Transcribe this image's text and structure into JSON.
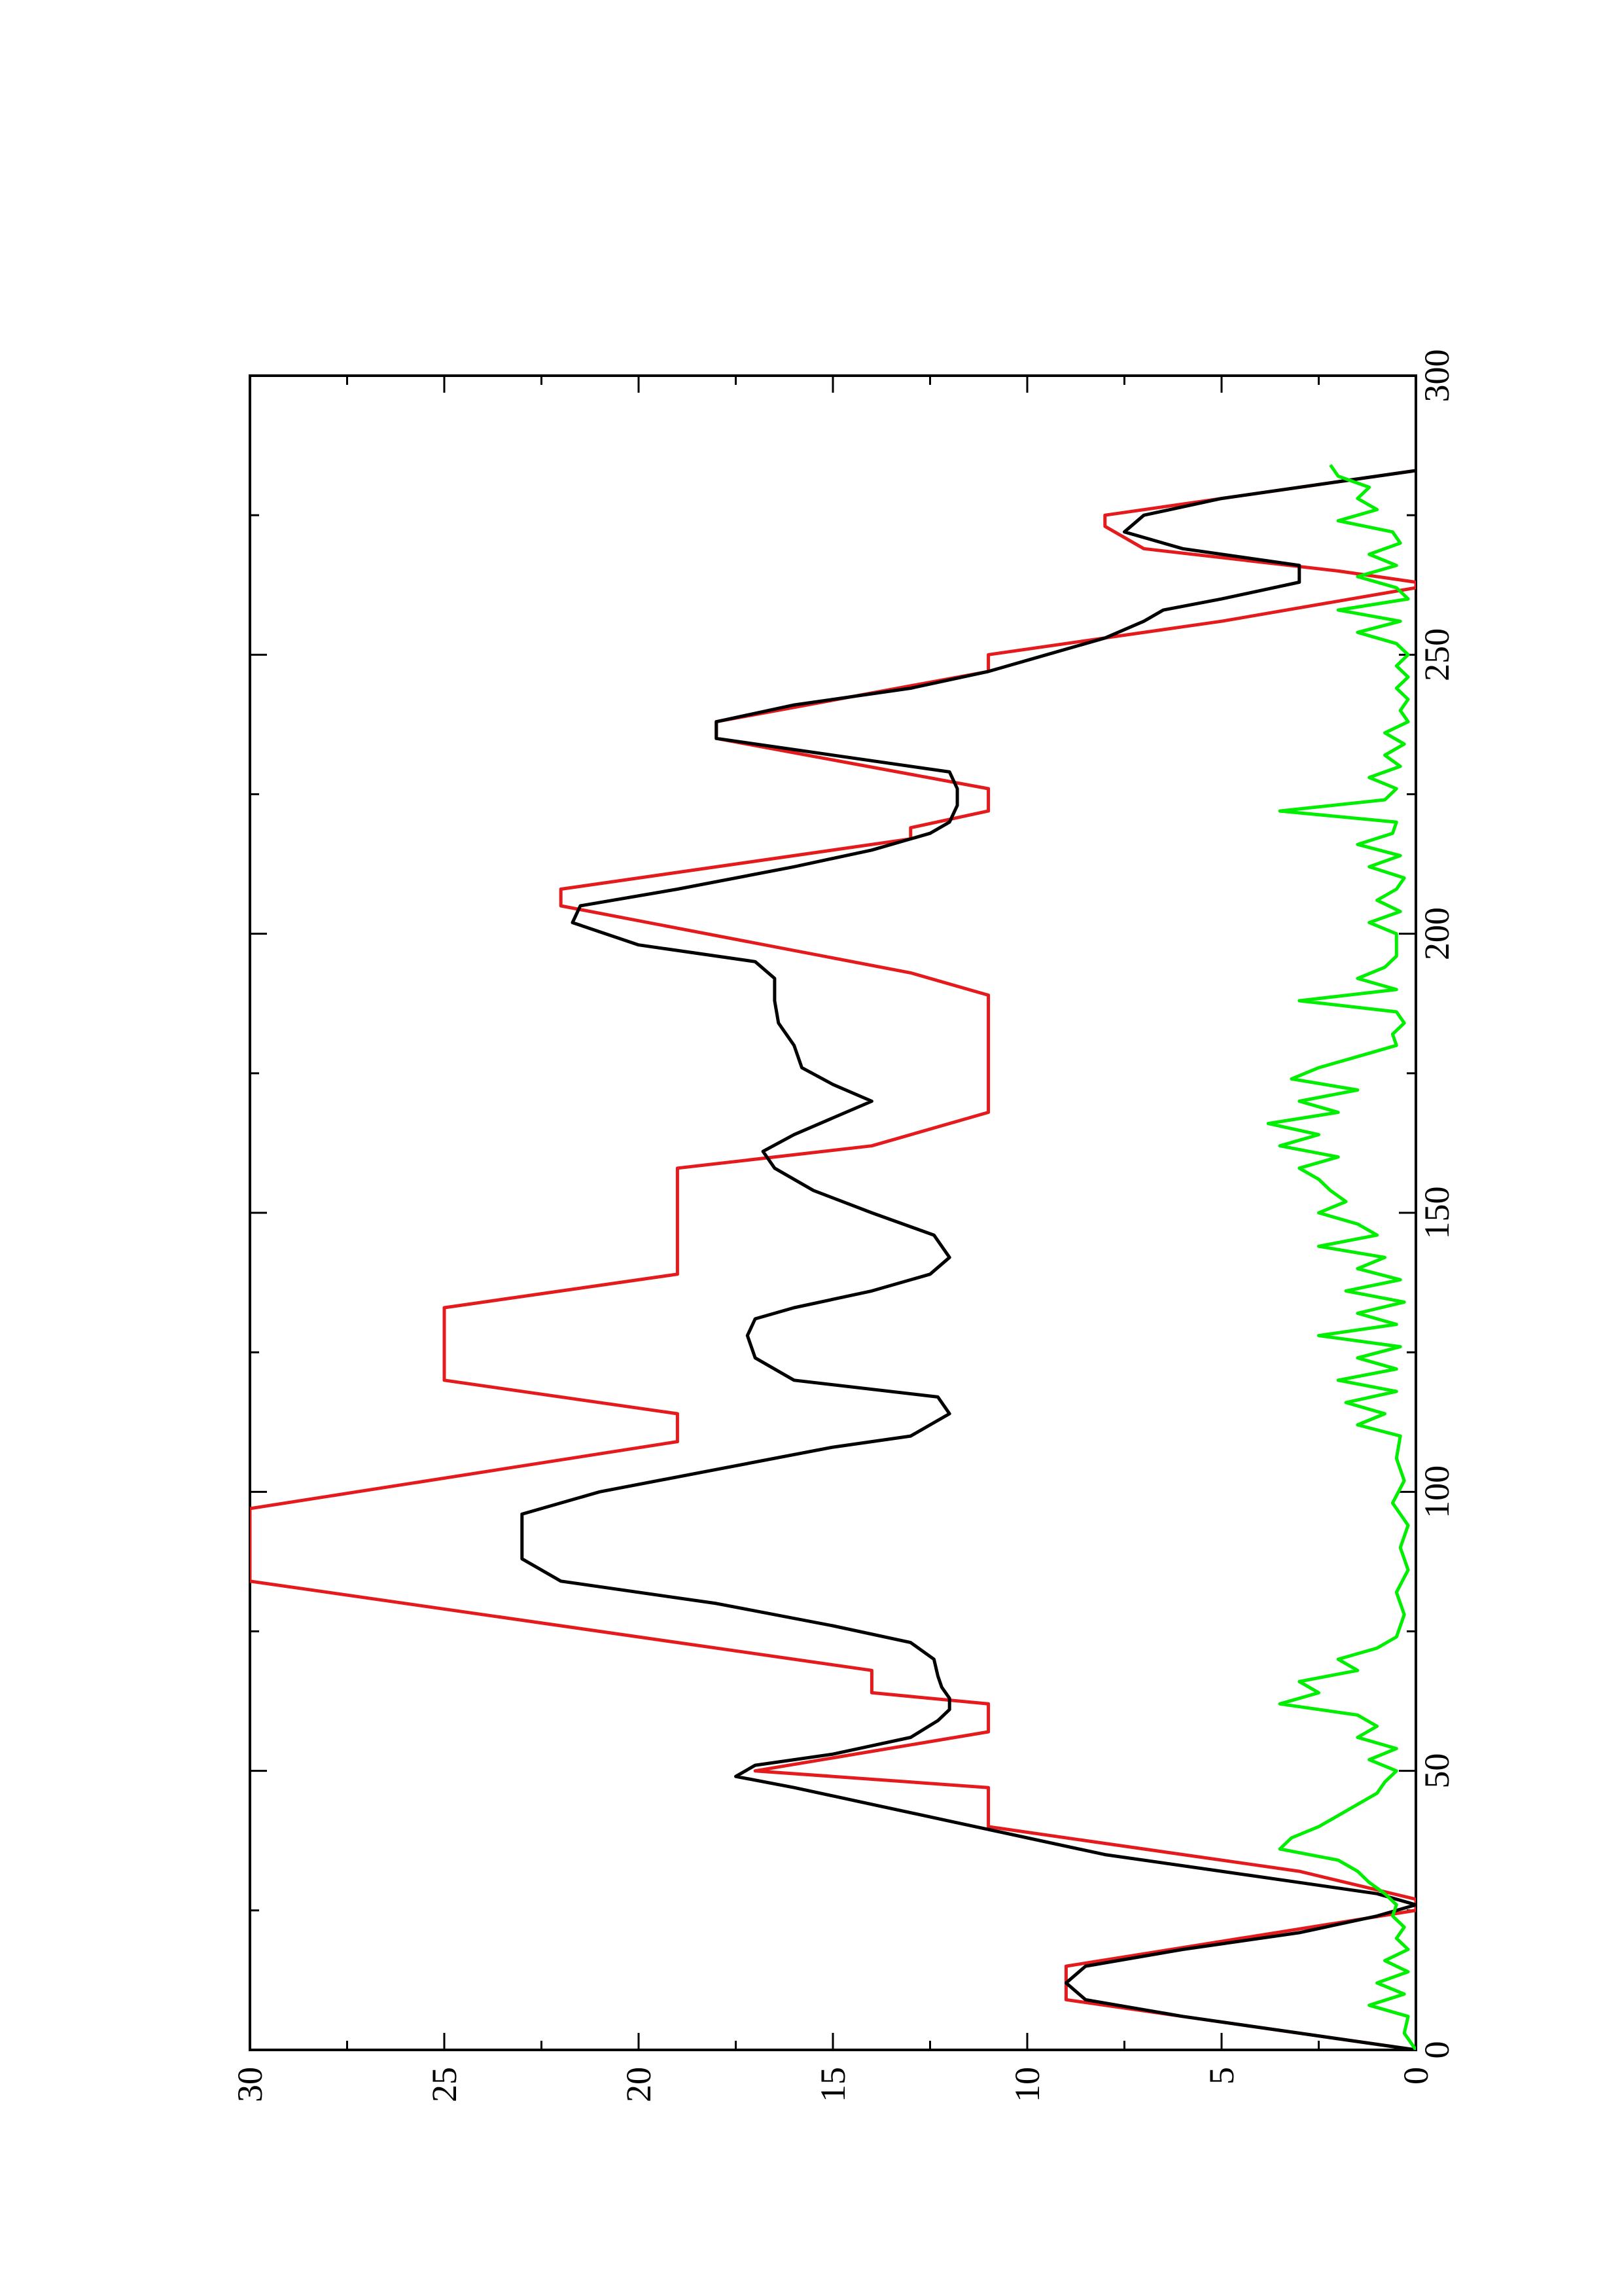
{
  "chart_data": {
    "type": "line",
    "title": "",
    "xlabel": "",
    "ylabel": "",
    "xlim": [
      0,
      300
    ],
    "ylim": [
      0,
      30
    ],
    "orientation": "rotated-90-ccw",
    "grid": false,
    "legend": "none",
    "x_ticks": [
      {
        "value": 0,
        "label": "0"
      },
      {
        "value": 50,
        "label": "50"
      },
      {
        "value": 100,
        "label": "100"
      },
      {
        "value": 150,
        "label": "150"
      },
      {
        "value": 200,
        "label": "200"
      },
      {
        "value": 250,
        "label": "250"
      },
      {
        "value": 300,
        "label": "300"
      }
    ],
    "y_ticks": [
      {
        "value": 0,
        "label": "0"
      },
      {
        "value": 5,
        "label": "5"
      },
      {
        "value": 10,
        "label": "10"
      },
      {
        "value": 15,
        "label": "15"
      },
      {
        "value": 20,
        "label": "20"
      },
      {
        "value": 25,
        "label": "25"
      },
      {
        "value": 30,
        "label": "30"
      }
    ],
    "series": [
      {
        "color": "#e41a1c",
        "x": [
          0,
          9,
          15,
          25,
          27,
          32,
          37,
          40,
          47,
          50,
          57,
          62,
          64,
          68,
          84,
          97,
          109,
          114,
          120,
          133,
          139,
          158,
          162,
          168,
          189,
          193,
          205,
          208,
          217,
          219,
          222,
          226,
          235,
          238,
          247,
          250,
          255,
          256,
          262,
          263,
          265,
          269,
          273,
          275,
          283
        ],
        "y": [
          0,
          9,
          9,
          0,
          0,
          3,
          8,
          11,
          11,
          17,
          11,
          11,
          14,
          14,
          30,
          30,
          19,
          19,
          25,
          25,
          19,
          19,
          14,
          11,
          11,
          13,
          22,
          22,
          13,
          13,
          11,
          11,
          18,
          18,
          11,
          11,
          6,
          5,
          0,
          0,
          2,
          7,
          8,
          8,
          0
        ]
      },
      {
        "color": "#000000",
        "x": [
          0,
          3,
          6,
          9,
          12,
          15,
          18,
          21,
          24,
          26,
          28,
          30,
          32,
          35,
          38,
          41,
          44,
          47,
          49,
          51,
          53,
          56,
          59,
          61,
          63,
          65,
          67,
          70,
          73,
          76,
          80,
          84,
          88,
          92,
          96,
          100,
          104,
          108,
          110,
          112,
          114,
          117,
          120,
          124,
          128,
          131,
          133,
          136,
          139,
          142,
          146,
          150,
          154,
          158,
          161,
          164,
          167,
          170,
          173,
          176,
          180,
          184,
          188,
          192,
          195,
          198,
          202,
          205,
          208,
          212,
          215,
          218,
          220,
          223,
          226,
          229,
          232,
          235,
          238,
          241,
          244,
          247,
          250,
          253,
          256,
          258,
          260,
          263,
          266,
          269,
          272,
          275,
          278,
          281,
          283
        ],
        "y": [
          0,
          3,
          6,
          8.5,
          9,
          8.5,
          6,
          3,
          1,
          0,
          1,
          3,
          5,
          8,
          10,
          12,
          14,
          16,
          17.5,
          17,
          15,
          13,
          12.3,
          12,
          12,
          12.2,
          12.3,
          12.4,
          13,
          15,
          18,
          22,
          23,
          23,
          23,
          21,
          18,
          15,
          13,
          12.5,
          12,
          12.3,
          16,
          17,
          17.2,
          17,
          16,
          14,
          12.5,
          12,
          12.4,
          14,
          15.5,
          16.5,
          16.8,
          16,
          15,
          14,
          15,
          15.8,
          16,
          16.4,
          16.5,
          16.5,
          17,
          20,
          21.7,
          21.5,
          19,
          16,
          14,
          12.5,
          12,
          11.8,
          11.8,
          12,
          15,
          18,
          18,
          16,
          13,
          11,
          9.5,
          8,
          7,
          6.5,
          5,
          3,
          3,
          6,
          7.5,
          7,
          5,
          2,
          0
        ]
      },
      {
        "color": "#00ee00",
        "x": [
          0,
          3,
          6,
          8,
          10,
          12,
          14,
          16,
          18,
          20,
          22,
          24,
          26,
          28,
          30,
          32,
          34,
          36,
          38,
          40,
          42,
          44,
          46,
          48,
          50,
          52,
          54,
          56,
          58,
          60,
          62,
          64,
          66,
          68,
          70,
          72,
          74,
          78,
          82,
          86,
          90,
          94,
          98,
          102,
          106,
          110,
          112,
          114,
          116,
          118,
          120,
          122,
          124,
          126,
          128,
          130,
          132,
          134,
          136,
          138,
          140,
          142,
          144,
          146,
          148,
          150,
          152,
          154,
          156,
          158,
          160,
          162,
          164,
          166,
          168,
          170,
          172,
          174,
          176,
          178,
          180,
          182,
          184,
          186,
          188,
          190,
          192,
          194,
          196,
          198,
          200,
          202,
          204,
          206,
          208,
          210,
          212,
          214,
          216,
          218,
          220,
          222,
          224,
          226,
          228,
          230,
          232,
          234,
          236,
          238,
          240,
          242,
          244,
          246,
          248,
          250,
          252,
          254,
          256,
          258,
          260,
          262,
          264,
          266,
          268,
          270,
          272,
          274,
          276,
          278,
          280,
          282,
          284
        ],
        "y": [
          0,
          0.3,
          0.2,
          1.2,
          0.3,
          1,
          0.2,
          0.8,
          0.2,
          0.5,
          0.3,
          0.6,
          0.5,
          0.8,
          1.2,
          1.5,
          2,
          3.5,
          3.2,
          2.5,
          2,
          1.5,
          1,
          0.8,
          0.5,
          1.2,
          0.5,
          1.5,
          1,
          1.5,
          3.5,
          2.5,
          3,
          1.5,
          2,
          1,
          0.5,
          0.3,
          0.5,
          0.2,
          0.4,
          0.2,
          0.6,
          0.3,
          0.5,
          0.4,
          1.5,
          0.8,
          1.8,
          0.5,
          2,
          0.5,
          1.5,
          0.4,
          2.5,
          0.5,
          1.5,
          0.3,
          1.8,
          0.4,
          1.5,
          0.8,
          2.5,
          1,
          1.5,
          2.5,
          1.8,
          2.2,
          2.5,
          3,
          2,
          3.5,
          2.5,
          3.8,
          2,
          3,
          1.5,
          3.2,
          2.5,
          1.5,
          0.5,
          0.6,
          0.3,
          0.5,
          3,
          0.5,
          1.5,
          0.8,
          0.5,
          0.5,
          0.5,
          1.2,
          0.4,
          1,
          0.5,
          0.3,
          1.2,
          0.4,
          1.5,
          0.6,
          0.5,
          3.5,
          0.8,
          0.5,
          1.2,
          0.4,
          0.8,
          0.3,
          0.8,
          0.2,
          0.4,
          0.2,
          0.5,
          0.2,
          0.5,
          0.2,
          0.5,
          1.5,
          0.4,
          2,
          0.2,
          0.5,
          1.5,
          0.5,
          1.2,
          0.4,
          0.6,
          2,
          1,
          1.5,
          1.2,
          2,
          2.2
        ]
      }
    ]
  }
}
